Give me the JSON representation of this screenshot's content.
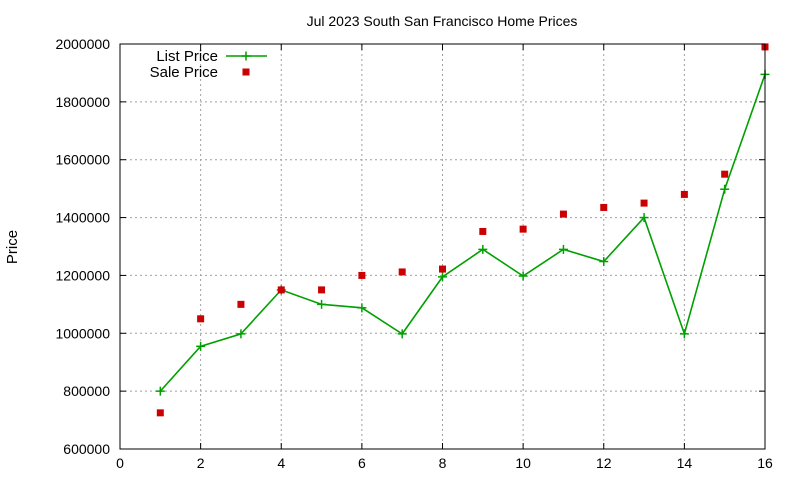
{
  "chart_data": {
    "type": "line",
    "title": "Jul 2023 South San Francisco Home Prices",
    "xlabel": "",
    "ylabel": "Price",
    "xlim": [
      0,
      16
    ],
    "ylim": [
      600000,
      2000000
    ],
    "xticks": [
      0,
      2,
      4,
      6,
      8,
      10,
      12,
      14,
      16
    ],
    "yticks": [
      600000,
      800000,
      1000000,
      1200000,
      1400000,
      1600000,
      1800000,
      2000000
    ],
    "grid": true,
    "legend_position": "top-left",
    "series": [
      {
        "name": "List Price",
        "style": "line+cross",
        "color": "#00a000",
        "x": [
          1,
          2,
          3,
          4,
          5,
          6,
          7,
          8,
          9,
          10,
          11,
          12,
          13,
          14,
          15,
          16
        ],
        "y": [
          800000,
          955000,
          998000,
          1150000,
          1100000,
          1088000,
          998000,
          1195000,
          1290000,
          1198000,
          1290000,
          1248000,
          1400000,
          998000,
          1498000,
          1895000
        ]
      },
      {
        "name": "Sale Price",
        "style": "square",
        "color": "#cc0000",
        "x": [
          1,
          2,
          3,
          4,
          5,
          6,
          7,
          8,
          9,
          10,
          11,
          12,
          13,
          14,
          15,
          16
        ],
        "y": [
          725000,
          1050000,
          1100000,
          1150000,
          1150000,
          1200000,
          1212000,
          1222000,
          1352000,
          1360000,
          1412000,
          1435000,
          1450000,
          1480000,
          1550000,
          1990000
        ]
      }
    ]
  }
}
